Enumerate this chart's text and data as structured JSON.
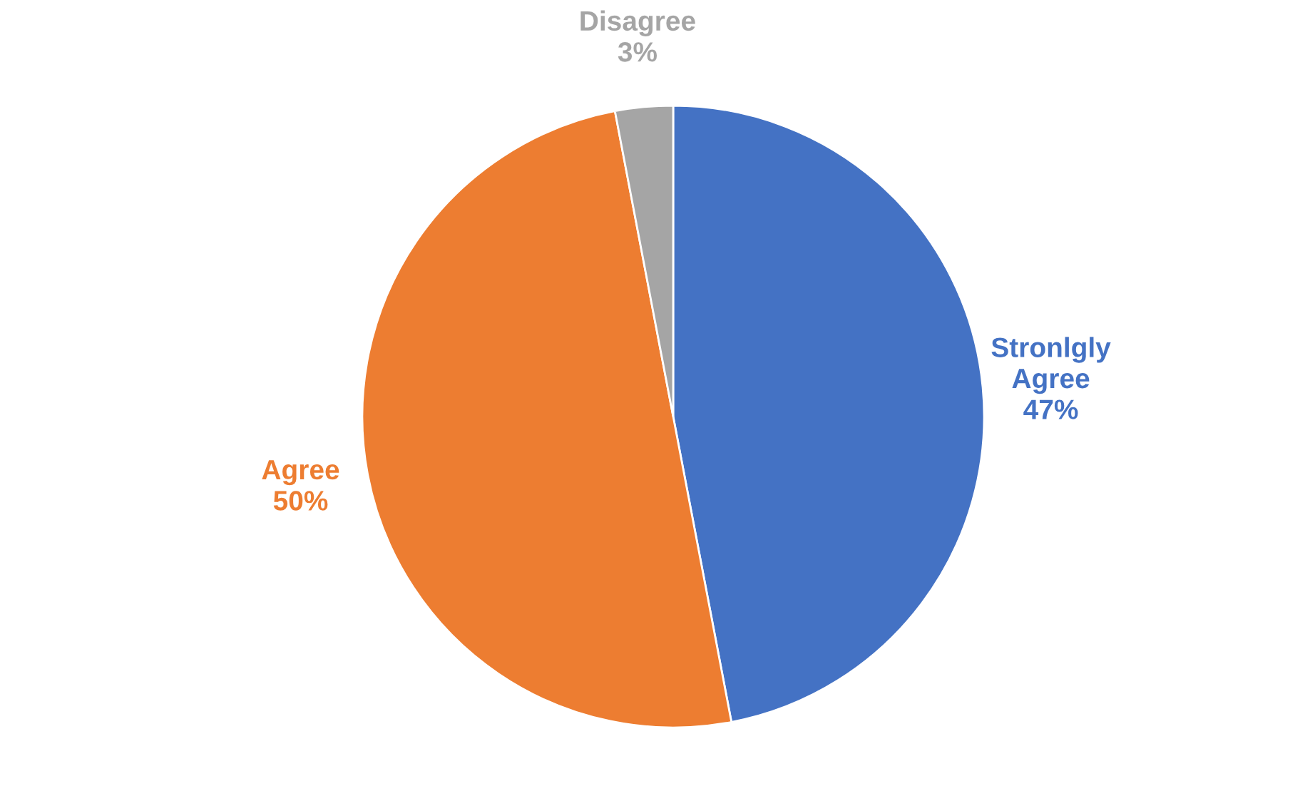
{
  "chart_data": {
    "type": "pie",
    "categories": [
      "Stronlgly Agree",
      "Agree",
      "Disagree"
    ],
    "values": [
      47,
      50,
      3
    ],
    "colors": [
      "#4472c4",
      "#ed7d31",
      "#a5a5a5"
    ],
    "value_labels": [
      "47%",
      "50%",
      "3%"
    ]
  }
}
